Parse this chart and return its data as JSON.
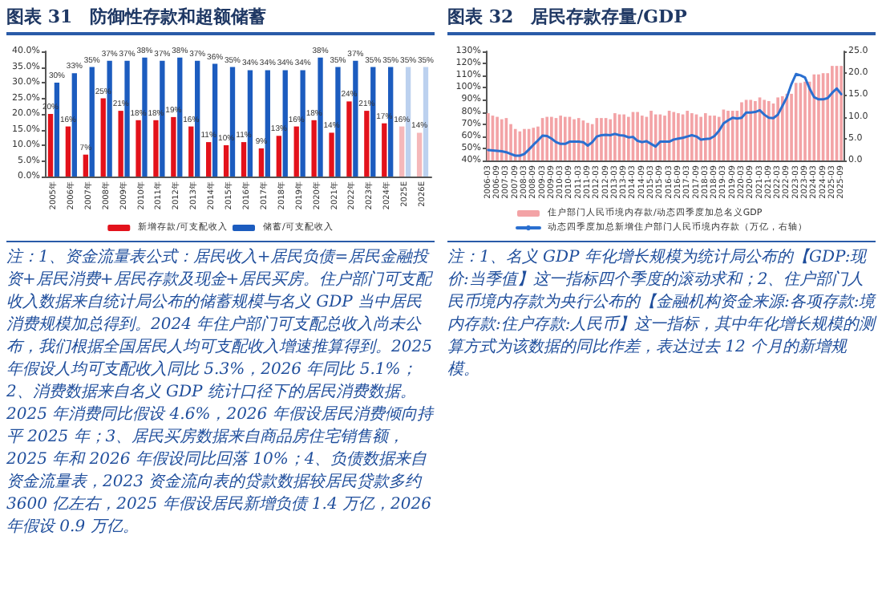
{
  "chart_data": [
    {
      "type": "bar",
      "title": "图表 31　防御性存款和超额储蓄",
      "categories": [
        "2005年",
        "2006年",
        "2007年",
        "2008年",
        "2009年",
        "2010年",
        "2011年",
        "2012年",
        "2013年",
        "2014年",
        "2015年",
        "2016年",
        "2017年",
        "2018年",
        "2019年",
        "2020年",
        "2021年",
        "2022年",
        "2023年",
        "2024年",
        "2025E",
        "2026E"
      ],
      "series": [
        {
          "name": "新增存款/可支配收入",
          "color": "#e3121b",
          "colors": [
            "#e3121b",
            "#e3121b",
            "#e3121b",
            "#e3121b",
            "#e3121b",
            "#e3121b",
            "#e3121b",
            "#e3121b",
            "#e3121b",
            "#e3121b",
            "#e3121b",
            "#e3121b",
            "#e3121b",
            "#e3121b",
            "#e3121b",
            "#e3121b",
            "#e3121b",
            "#e3121b",
            "#e3121b",
            "#e3121b",
            "#f5b8ba",
            "#f5b8ba"
          ],
          "values": [
            20,
            16,
            7,
            25,
            21,
            18,
            18,
            19,
            16,
            11,
            10,
            11,
            9,
            13,
            16,
            18,
            14,
            24,
            21,
            17,
            16,
            14
          ],
          "value_labels": [
            "20%",
            "16%",
            "7%",
            "25%",
            "21%",
            "18%",
            "18%",
            "19%",
            "16%",
            "11%",
            "10%",
            "11%",
            "9%",
            "13%",
            "16%",
            "18%",
            "14%",
            "24%",
            "21%",
            "17%",
            "16%",
            "14%"
          ]
        },
        {
          "name": "储蓄/可支配收入",
          "color": "#1c5cbf",
          "colors": [
            "#1c5cbf",
            "#1c5cbf",
            "#1c5cbf",
            "#1c5cbf",
            "#1c5cbf",
            "#1c5cbf",
            "#1c5cbf",
            "#1c5cbf",
            "#1c5cbf",
            "#1c5cbf",
            "#1c5cbf",
            "#1c5cbf",
            "#1c5cbf",
            "#1c5cbf",
            "#1c5cbf",
            "#1c5cbf",
            "#1c5cbf",
            "#1c5cbf",
            "#1c5cbf",
            "#1c5cbf",
            "#bcd1ef",
            "#bcd1ef"
          ],
          "values": [
            30,
            33,
            35,
            37,
            37,
            38,
            37,
            38,
            37,
            36,
            35,
            34,
            34,
            34,
            34,
            38,
            35,
            37,
            35,
            35,
            35,
            35
          ],
          "value_labels": [
            "30%",
            "33%",
            "35%",
            "37%",
            "37%",
            "38%",
            "37%",
            "38%",
            "37%",
            "36%",
            "35%",
            "34%",
            "34%",
            "34%",
            "34%",
            "38%",
            "35%",
            "37%",
            "35%",
            "35%",
            "35%",
            "35%"
          ]
        }
      ],
      "ylim": [
        0,
        40
      ],
      "yticks": [
        {
          "value": 0,
          "label": "0.0%"
        },
        {
          "value": 5,
          "label": "5.0%"
        },
        {
          "value": 10,
          "label": "10.0%"
        },
        {
          "value": 15,
          "label": "15.0%"
        },
        {
          "value": 20,
          "label": "20.0%"
        },
        {
          "value": 25,
          "label": "25.0%"
        },
        {
          "value": 30,
          "label": "30.0%"
        },
        {
          "value": 35,
          "label": "35.0%"
        },
        {
          "value": 40,
          "label": "40.0%"
        }
      ],
      "legend": "bottom",
      "annotations": [
        "注：1、资金流量表公式：居民收入+居民负债=居民金融投资+居民消费+居民存款及现金+居民买房。住户部门可支配收入数据来自统计局公布的储蓄规模与名义 GDP 当中居民消费规模加总得到。2024 年住户部门可支配总收入尚未公布，我们根据全国居民人均可支配收入增速推算得到。2025 年假设人均可支配收入同比 5.3%，2026 年同比 5.1%；2、消费数据来自名义 GDP 统计口径下的居民消费数据。2025 年消费同比假设 4.6%，2026 年假设居民消费倾向持平 2025 年；3、居民买房数据来自商品房住宅销售额，2025 年和 2026 年假设同比回落 10%；4、负债数据来自资金流量表，2023 资金流向表的贷款数据较居民贷款多约 3600 亿左右，2025 年假设居民新增负债 1.4 万亿，2026 年假设 0.9 万亿。"
      ]
    },
    {
      "type": "bar",
      "title": "图表 32　居民存款存量/GDP",
      "categories": [
        "2006-03",
        null,
        "2006-09",
        null,
        "2007-03",
        null,
        "2007-09",
        null,
        "2008-03",
        null,
        "2008-09",
        null,
        "2009-03",
        null,
        "2009-09",
        null,
        "2010-03",
        null,
        "2010-09",
        null,
        "2011-03",
        null,
        "2011-09",
        null,
        "2012-03",
        null,
        "2012-09",
        null,
        "2013-03",
        null,
        "2013-09",
        null,
        "2014-03",
        null,
        "2014-09",
        null,
        "2015-03",
        null,
        "2015-09",
        null,
        "2016-03",
        null,
        "2016-09",
        null,
        "2017-03",
        null,
        "2017-09",
        null,
        "2018-03",
        null,
        "2018-09",
        null,
        "2019-03",
        null,
        "2019-09",
        null,
        "2020-03",
        null,
        "2020-09",
        null,
        "2021-03",
        null,
        "2021-09",
        null,
        "2022-03",
        null,
        "2022-09",
        null,
        "2023-03",
        null,
        "2023-09",
        null,
        "2024-03",
        null,
        "2024-09",
        null,
        "2025-03",
        null,
        "2025-09"
      ],
      "series": [
        {
          "name": "住户部门人民币境内存款/动态四季度加总名义GDP",
          "color": "#f3a3a6",
          "values": [
            79,
            77,
            76,
            74,
            75,
            70,
            66,
            64,
            66,
            66,
            67,
            68,
            75,
            76,
            76,
            75,
            77,
            76,
            76,
            74,
            75,
            73,
            71,
            70,
            75,
            75,
            75,
            74,
            79,
            78,
            78,
            76,
            80,
            80,
            77,
            76,
            81,
            78,
            78,
            77,
            81,
            80,
            79,
            78,
            81,
            79,
            78,
            76,
            79,
            77,
            77,
            76,
            82,
            81,
            81,
            81,
            88,
            90,
            90,
            89,
            92,
            90,
            89,
            87,
            92,
            93,
            95,
            95,
            104,
            104,
            105,
            105,
            111,
            111,
            112,
            112,
            118,
            118,
            118
          ]
        },
        {
          "name": "动态四季度加总新增住户部门人民币境内存款（万亿，右轴）",
          "type": "line",
          "axis": "y2",
          "color": "#2a6fd0",
          "values": [
            2.4,
            2.3,
            2.2,
            2.1,
            1.9,
            1.5,
            1.1,
            1.1,
            1.5,
            2.5,
            3.6,
            4.6,
            5.7,
            5.6,
            5.0,
            4.2,
            3.8,
            3.8,
            4.3,
            4.3,
            4.3,
            4.2,
            3.4,
            4.2,
            5.5,
            5.8,
            5.9,
            5.8,
            6.1,
            5.8,
            5.7,
            5.3,
            5.4,
            4.5,
            4.2,
            4.4,
            3.8,
            3.2,
            4.3,
            4.3,
            4.3,
            4.8,
            5.0,
            5.2,
            5.5,
            5.8,
            5.5,
            4.8,
            4.9,
            5.0,
            5.6,
            6.8,
            8.5,
            9.2,
            9.8,
            9.6,
            9.8,
            11.0,
            11.0,
            11.1,
            11.5,
            10.5,
            9.8,
            9.7,
            10.5,
            12.5,
            14.5,
            17.5,
            19.8,
            19.5,
            19.0,
            16.5,
            14.5,
            14.0,
            14.0,
            14.3,
            15.5,
            16.5,
            15.2
          ]
        }
      ],
      "ylim": [
        40,
        130
      ],
      "yticks": [
        {
          "value": 40,
          "label": "40%"
        },
        {
          "value": 50,
          "label": "50%"
        },
        {
          "value": 60,
          "label": "60%"
        },
        {
          "value": 70,
          "label": "70%"
        },
        {
          "value": 80,
          "label": "80%"
        },
        {
          "value": 90,
          "label": "90%"
        },
        {
          "value": 100,
          "label": "100%"
        },
        {
          "value": 110,
          "label": "110%"
        },
        {
          "value": 120,
          "label": "120%"
        },
        {
          "value": 130,
          "label": "130%"
        }
      ],
      "y2lim": [
        0,
        25
      ],
      "y2ticks": [
        {
          "value": 0,
          "label": "0.0"
        },
        {
          "value": 5,
          "label": "5.0"
        },
        {
          "value": 10,
          "label": "10.0"
        },
        {
          "value": 15,
          "label": "15.0"
        },
        {
          "value": 20,
          "label": "20.0"
        },
        {
          "value": 25,
          "label": "25.0"
        }
      ],
      "marker": "none",
      "legend": "bottom",
      "annotations": [
        "注：1、名义 GDP 年化增长规模为统计局公布的【GDP:现价:当季值】这一指标四个季度的滚动求和；2、住户部门人民币境内存款为央行公布的【金融机构资金来源:各项存款:境内存款:住户存款:人民币】这一指标，其中年化增长规模的测算方式为该数据的同比作差，表达过去 12 个月的新增规模。"
      ]
    }
  ]
}
